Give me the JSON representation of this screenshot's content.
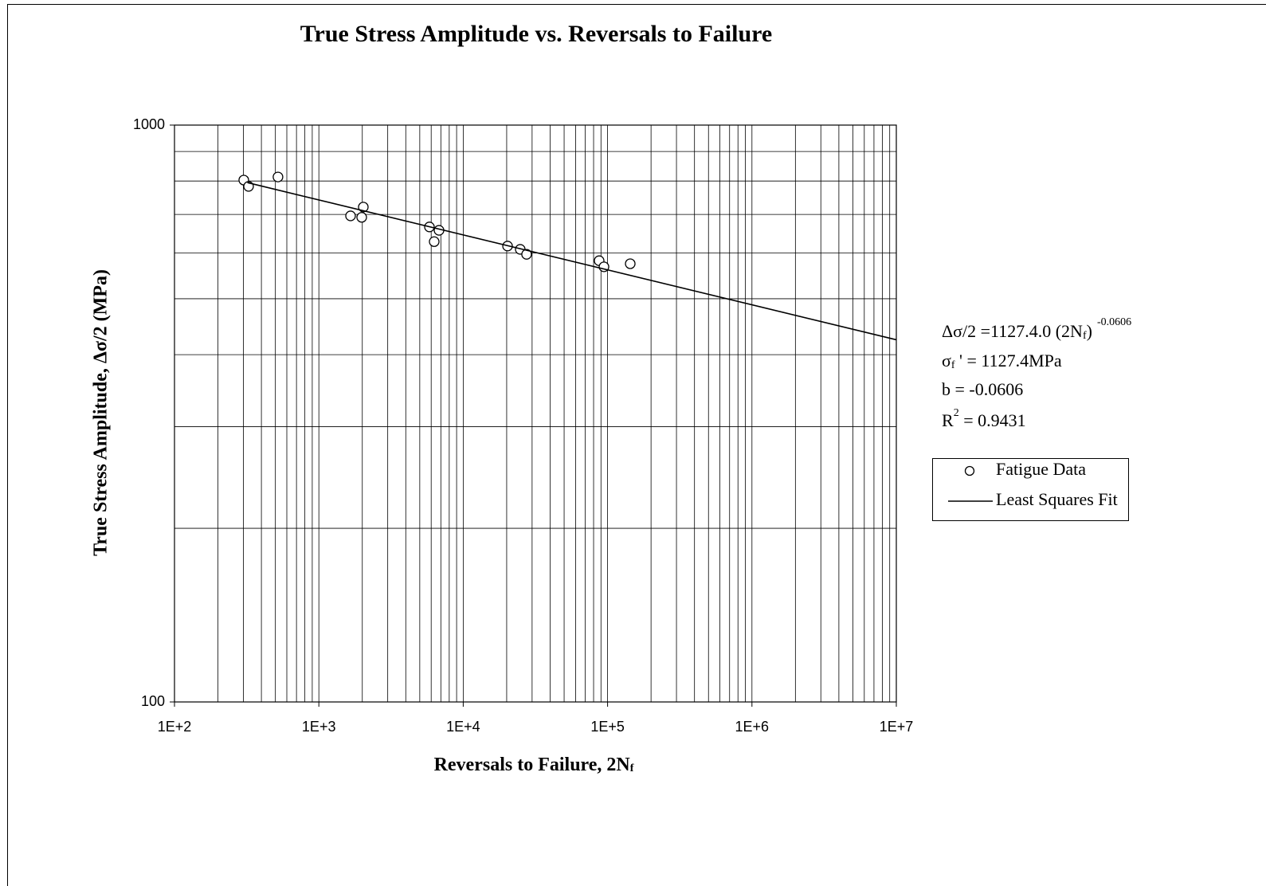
{
  "chart_data": {
    "type": "scatter",
    "title": "True Stress Amplitude vs. Reversals to Failure",
    "xlabel": [
      "Reversals to Failure, 2N",
      "f"
    ],
    "ylabel": "True Stress Amplitude, Δσ/2 (MPa)",
    "xlog": true,
    "ylog": true,
    "xlim": [
      100,
      10000000
    ],
    "ylim": [
      100,
      1000
    ],
    "xticks": [
      {
        "value": 100,
        "label": "1E+2"
      },
      {
        "value": 1000,
        "label": "1E+3"
      },
      {
        "value": 10000,
        "label": "1E+4"
      },
      {
        "value": 100000,
        "label": "1E+5"
      },
      {
        "value": 1000000,
        "label": "1E+6"
      },
      {
        "value": 10000000,
        "label": "1E+7"
      }
    ],
    "yticks": [
      100,
      1000
    ],
    "xminorticks": [
      200,
      300,
      400,
      500,
      600,
      700,
      800,
      900,
      2000,
      3000,
      4000,
      5000,
      6000,
      7000,
      8000,
      9000,
      20000,
      30000,
      40000,
      50000,
      60000,
      70000,
      80000,
      90000,
      200000,
      300000,
      400000,
      500000,
      600000,
      700000,
      800000,
      900000,
      2000000,
      3000000,
      4000000,
      5000000,
      6000000,
      7000000,
      8000000,
      9000000
    ],
    "yminorticks": [
      200,
      300,
      400,
      500,
      600,
      700,
      800,
      900
    ],
    "grid": true,
    "legend": "right",
    "series": [
      {
        "name": "Fatigue Data",
        "color": "#000000",
        "marker": "circle",
        "x": [
          302,
          326,
          521,
          1658,
          1981,
          2032,
          5834,
          6295,
          6797,
          20280,
          24830,
          27480,
          87400,
          94400,
          143500
        ],
        "values": [
          803,
          783,
          813,
          696,
          692,
          721,
          666,
          628,
          657,
          617,
          609,
          597,
          582,
          568,
          575
        ]
      },
      {
        "name": "Least Squares Fit",
        "color": "#000000",
        "marker": "line",
        "x": [
          320,
          10000000
        ],
        "values": [
          794.8,
          424.5
        ]
      }
    ],
    "annotations": [
      [
        "Δσ/2 =1127.4.0 (2N",
        "f",
        ")",
        "-0.0606"
      ],
      [
        "σ",
        "f",
        " ' = 1127.4MPa"
      ],
      [
        "b = -0.0606"
      ],
      [
        "R",
        "2",
        " = 0.9431"
      ]
    ]
  }
}
